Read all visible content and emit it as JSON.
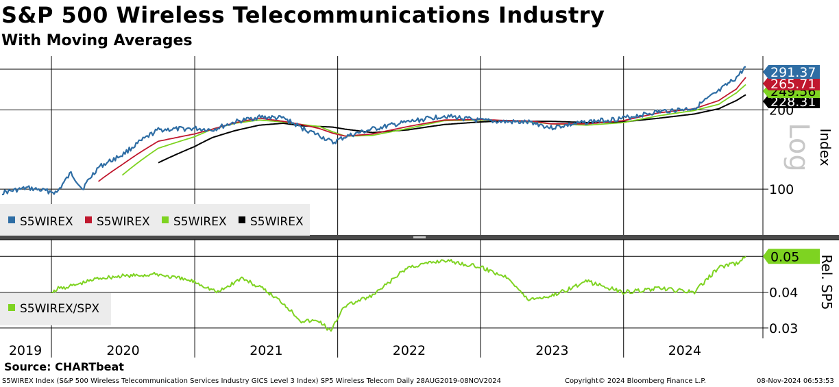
{
  "header": {
    "title": "S&P 500 Wireless Telecommunications Industry",
    "subtitle": "With Moving Averages"
  },
  "footer": {
    "source": "Source: CHARTbeat",
    "description": "S5WIREX Index (S&P 500 Wireless Telecommunication Services Industry GICS Level 3 Index) SP5 Wireless Telecom  Daily 28AUG2019-08NOV2024",
    "copyright": "Copyright© 2024 Bloomberg Finance L.P.",
    "timestamp": "08-Nov-2024 06:53:53"
  },
  "colors": {
    "blue": "#2e6da4",
    "red": "#c0182e",
    "green": "#7ed321",
    "black": "#000000",
    "grid": "#000000",
    "legend_bg": "#ececec"
  },
  "chart_data": [
    {
      "type": "line",
      "title": "",
      "x_years": [
        "2019",
        "2020",
        "2021",
        "2022",
        "2023",
        "2024"
      ],
      "x_range": [
        "2019-08-28",
        "2024-11-08"
      ],
      "y_scale": "log",
      "y_axis_label": "Index",
      "y_scale_label": "Log",
      "y_ticks": [
        100,
        200
      ],
      "ylim": [
        67,
        320
      ],
      "grid": true,
      "legend_position": "bottom-left",
      "x": [
        "2019-08-28",
        "2019-11-01",
        "2020-01-15",
        "2020-02-20",
        "2020-03-20",
        "2020-04-30",
        "2020-06-30",
        "2020-09-30",
        "2020-12-31",
        "2021-02-15",
        "2021-04-15",
        "2021-06-15",
        "2021-08-15",
        "2021-09-30",
        "2021-11-15",
        "2021-12-20",
        "2022-01-20",
        "2022-03-31",
        "2022-06-30",
        "2022-09-30",
        "2022-12-31",
        "2023-03-15",
        "2023-05-15",
        "2023-06-30",
        "2023-09-30",
        "2023-12-31",
        "2024-03-31",
        "2024-06-30",
        "2024-08-31",
        "2024-10-15",
        "2024-11-08"
      ],
      "series": [
        {
          "name": "S5WIREX",
          "color": "blue",
          "values": [
            97,
            101,
            97,
            115,
            100,
            121,
            135,
            168,
            170,
            168,
            180,
            188,
            186,
            171,
            160,
            150,
            158,
            169,
            180,
            190,
            182,
            180,
            179,
            171,
            180,
            186,
            197,
            203,
            235,
            265,
            291.37
          ]
        },
        {
          "name": "S5WIREX",
          "color": "red",
          "values": [
            null,
            null,
            null,
            null,
            null,
            107,
            124,
            152,
            162,
            169,
            179,
            186,
            181,
            176,
            170,
            163,
            159,
            162,
            173,
            183,
            184,
            182,
            181,
            177,
            177,
            182,
            195,
            202,
            217,
            240,
            265.71
          ]
        },
        {
          "name": "S5WIREX",
          "color": "green",
          "values": [
            null,
            null,
            null,
            null,
            null,
            null,
            113,
            143,
            158,
            169,
            178,
            183,
            180,
            176,
            173,
            165,
            159,
            160,
            170,
            182,
            183,
            182,
            180,
            177,
            175,
            179,
            190,
            199,
            210,
            232,
            249.56
          ]
        },
        {
          "name": "S5WIREX",
          "color": "black",
          "values": [
            null,
            null,
            null,
            null,
            null,
            null,
            null,
            126,
            145,
            157,
            167,
            175,
            178,
            174,
            173,
            172,
            169,
            164,
            168,
            176,
            180,
            182,
            181,
            181,
            179,
            180,
            186,
            193,
            202,
            217,
            228.31
          ]
        }
      ],
      "last_value_labels": [
        "291.37",
        "265.71",
        "249.56",
        "228.31"
      ]
    },
    {
      "type": "line",
      "title": "",
      "y_axis_label": "Rel. SP5",
      "y_ticks": [
        0.03,
        0.04,
        0.05
      ],
      "ylim": [
        0.0275,
        0.0535
      ],
      "grid": true,
      "legend_position": "bottom-left",
      "x": [
        "2019-08-28",
        "2019-10-15",
        "2019-11-20",
        "2020-01-15",
        "2020-03-01",
        "2020-05-01",
        "2020-07-01",
        "2020-09-30",
        "2020-12-31",
        "2021-03-01",
        "2021-05-01",
        "2021-06-30",
        "2021-08-15",
        "2021-09-30",
        "2021-11-15",
        "2021-12-15",
        "2022-01-15",
        "2022-03-31",
        "2022-06-30",
        "2022-09-30",
        "2022-12-31",
        "2023-03-15",
        "2023-04-30",
        "2023-06-30",
        "2023-09-30",
        "2023-12-31",
        "2024-03-31",
        "2024-06-30",
        "2024-08-31",
        "2024-10-15",
        "2024-11-08"
      ],
      "series": [
        {
          "name": "S5WIREX/SPX",
          "color": "green",
          "values": [
            0.0345,
            0.0345,
            0.034,
            0.041,
            0.042,
            0.044,
            0.0445,
            0.045,
            0.043,
            0.04,
            0.044,
            0.0405,
            0.037,
            0.032,
            0.032,
            0.029,
            0.036,
            0.039,
            0.047,
            0.049,
            0.047,
            0.044,
            0.038,
            0.039,
            0.043,
            0.04,
            0.041,
            0.04,
            0.047,
            0.048,
            0.05
          ]
        }
      ],
      "last_value_labels": [
        "0.05"
      ]
    }
  ]
}
